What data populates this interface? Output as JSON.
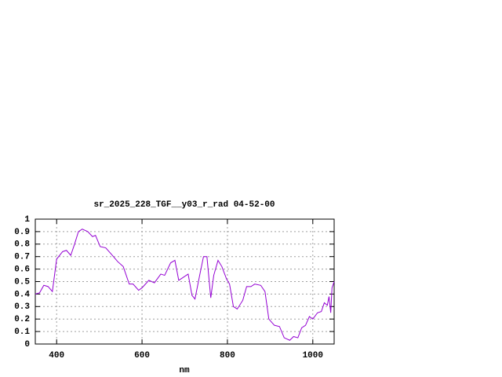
{
  "chart_data": {
    "type": "line",
    "title": "sr_2025_228_TGF__y03_r_rad 04-52-00",
    "x_label": "nm",
    "x": [
      350,
      360,
      370,
      380,
      390,
      400,
      414,
      423,
      433,
      442,
      451,
      460,
      473,
      484,
      491,
      502,
      515,
      528,
      543,
      556,
      570,
      579,
      592,
      600,
      616,
      629,
      644,
      653,
      667,
      677,
      686,
      695,
      708,
      717,
      724,
      735,
      744,
      752,
      761,
      768,
      778,
      787,
      798,
      805,
      814,
      823,
      836,
      845,
      855,
      864,
      878,
      888,
      897,
      910,
      922,
      933,
      946,
      955,
      965,
      974,
      983,
      992,
      1000,
      1011,
      1020,
      1027,
      1034,
      1038,
      1042,
      1045,
      1050
    ],
    "series": [
      {
        "color": "#9400d3",
        "values": [
          0.4,
          0.41,
          0.47,
          0.46,
          0.42,
          0.68,
          0.74,
          0.75,
          0.71,
          0.8,
          0.9,
          0.92,
          0.9,
          0.86,
          0.87,
          0.78,
          0.77,
          0.72,
          0.66,
          0.62,
          0.48,
          0.48,
          0.43,
          0.45,
          0.51,
          0.49,
          0.56,
          0.55,
          0.65,
          0.67,
          0.51,
          0.53,
          0.56,
          0.39,
          0.36,
          0.55,
          0.7,
          0.7,
          0.37,
          0.55,
          0.67,
          0.62,
          0.52,
          0.48,
          0.3,
          0.28,
          0.35,
          0.46,
          0.46,
          0.48,
          0.47,
          0.42,
          0.2,
          0.15,
          0.14,
          0.05,
          0.03,
          0.06,
          0.05,
          0.13,
          0.15,
          0.22,
          0.2,
          0.25,
          0.26,
          0.33,
          0.31,
          0.38,
          0.25,
          0.45,
          0.5
        ]
      }
    ],
    "xlim": [
      350,
      1050
    ],
    "ylim": [
      0,
      1
    ],
    "xticks": [
      400,
      600,
      800,
      1000
    ],
    "yticks": [
      0,
      0.1,
      0.2,
      0.3,
      0.4,
      0.5,
      0.6,
      0.7,
      0.8,
      0.9,
      1
    ],
    "grid": true
  }
}
